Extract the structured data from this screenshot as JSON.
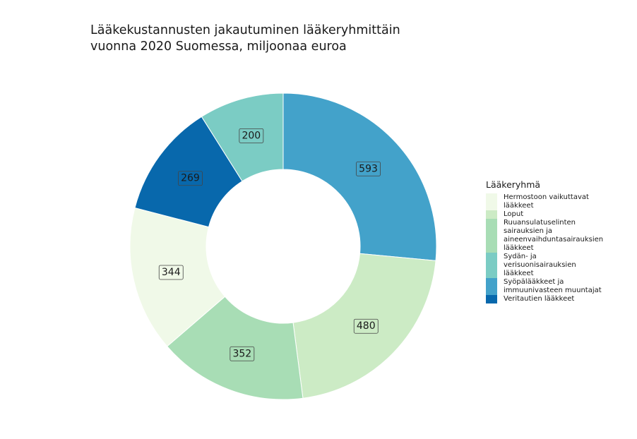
{
  "chart_data": {
    "type": "pie",
    "title_lines": [
      "Lääkekustannusten jakautuminen lääkeryhmittäin",
      "vuonna 2020 Suomessa, miljoonaa euroa"
    ],
    "legend_title": "Lääkeryhmä",
    "legend_placement": "right",
    "hole": true,
    "categories": [
      {
        "name": "Syöpälääkkeet ja immuunivasteen muuntajat",
        "legend_lines": [
          "Syöpälääkkeet ja",
          "immuunivasteen muuntajat"
        ],
        "value": 593,
        "color": "#43a2ca"
      },
      {
        "name": "Loput",
        "legend_lines": [
          "Loput"
        ],
        "value": 480,
        "color": "#ccebc5"
      },
      {
        "name": "Ruuansulatuselinten sairauksien ja aineenvaihduntasairauksien lääkkeet",
        "legend_lines": [
          "Ruuansulatuselinten",
          "sairauksien ja",
          "aineenvaihduntasairauksien",
          "lääkkeet"
        ],
        "value": 352,
        "color": "#a8ddb5"
      },
      {
        "name": "Hermostoon vaikuttavat lääkkeet",
        "legend_lines": [
          "Hermostoon vaikuttavat",
          "lääkkeet"
        ],
        "value": 344,
        "color": "#f0f9e8"
      },
      {
        "name": "Veritautien lääkkeet",
        "legend_lines": [
          "Veritautien lääkkeet"
        ],
        "value": 269,
        "color": "#0868ac"
      },
      {
        "name": "Sydän- ja verisuonisairauksien lääkkeet",
        "legend_lines": [
          "Sydän- ja",
          "verisuonisairauksien",
          "lääkkeet"
        ],
        "value": 200,
        "color": "#7bccc4"
      }
    ],
    "legend_order": [
      3,
      1,
      2,
      5,
      0,
      4
    ]
  }
}
